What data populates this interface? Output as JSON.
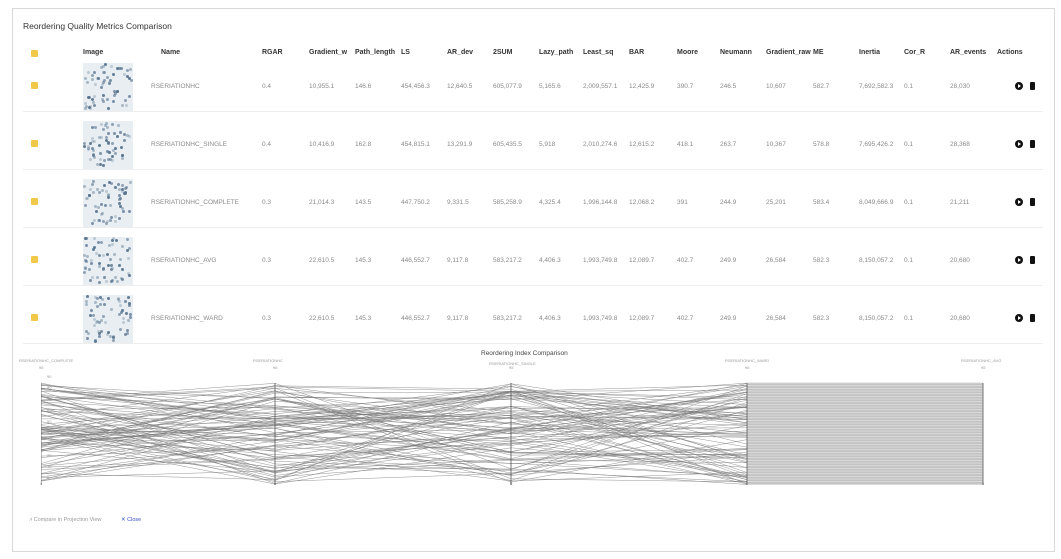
{
  "title": "Reordering Quality Metrics Comparison",
  "columns": [
    "Image",
    "Name",
    "RGAR",
    "Gradient_w",
    "Path_length",
    "LS",
    "AR_dev",
    "2SUM",
    "Lazy_path",
    "Least_sq",
    "BAR",
    "Moore",
    "Neumann",
    "Gradient_raw",
    "ME",
    "Inertia",
    "Cor_R",
    "AR_events",
    "Actions"
  ],
  "rows": [
    {
      "name": "RSERIATIONHC",
      "cells": [
        "0.4",
        "10,955.1",
        "146.6",
        "454,456.3",
        "12,640.5",
        "605,077.9",
        "5,165.6",
        "2,009,557.1",
        "12,425.9",
        "390.7",
        "246.5",
        "10,607",
        "582.7",
        "7,692,582.3",
        "0.1",
        "28,030"
      ]
    },
    {
      "name": "RSERIATIONHC_SINGLE",
      "cells": [
        "0.4",
        "10,416.9",
        "162.8",
        "454,815.1",
        "13,291.9",
        "605,435.5",
        "5,918",
        "2,010,274.6",
        "12,615.2",
        "418.1",
        "263.7",
        "10,367",
        "578.8",
        "7,695,426.2",
        "0.1",
        "28,368"
      ]
    },
    {
      "name": "RSERIATIONHC_COMPLETE",
      "cells": [
        "0.3",
        "21,014.3",
        "143.5",
        "447,750.2",
        "9,331.5",
        "585,258.9",
        "4,325.4",
        "1,996,144.8",
        "12,068.2",
        "391",
        "244.9",
        "25,201",
        "583.4",
        "8,049,666.9",
        "0.1",
        "21,211"
      ]
    },
    {
      "name": "RSERIATIONHC_AVG",
      "cells": [
        "0.3",
        "22,610.5",
        "145.3",
        "446,552.7",
        "9,117.8",
        "583,217.2",
        "4,406.3",
        "1,993,749.8",
        "12,089.7",
        "402.7",
        "249.9",
        "26,584",
        "582.3",
        "8,150,057.2",
        "0.1",
        "20,680"
      ]
    },
    {
      "name": "RSERIATIONHC_WARD",
      "cells": [
        "0.3",
        "22,610.5",
        "145.3",
        "446,552.7",
        "9,117.8",
        "583,217.2",
        "4,406.3",
        "1,993,749.8",
        "12,089.7",
        "402.7",
        "249.9",
        "26,584",
        "582.3",
        "8,150,057.2",
        "0.1",
        "20,680"
      ]
    }
  ],
  "chart": {
    "title": "Reordering Index Comparison",
    "axes": [
      "RSERIATIONHC_COMPLETE",
      "RSERIATIONHC",
      "RSERIATIONHC_SINGLE",
      "RSERIATIONHC_WARD",
      "RSERIATIONHC_AVG"
    ],
    "y_ticks": [
      "0",
      "10",
      "20",
      "30",
      "40",
      "50",
      "60",
      "70",
      "80",
      "90"
    ],
    "axis_max": "95",
    "axis_min": "0"
  },
  "footer": {
    "toggle": "Compare in Projection View",
    "close": "Close"
  },
  "icons": {
    "row_folder": "folder-icon",
    "view": "eye-icon",
    "delete": "trash-icon",
    "chart": "chart-icon",
    "close": "close-icon"
  },
  "colors": {
    "folder": "#f0c84a",
    "line": "#777777"
  }
}
